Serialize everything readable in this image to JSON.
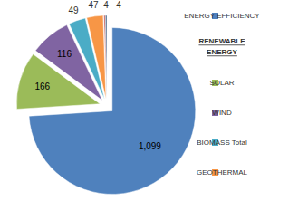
{
  "chart_data": {
    "type": "pie",
    "categories": [
      "ENERGY EFFICIENCY",
      "SOLAR",
      "WIND",
      "BIOMASS Total",
      "GEOTHERMAL",
      null,
      null
    ],
    "values": [
      1099,
      166,
      116,
      49,
      47,
      4,
      4
    ],
    "value_labels": [
      "1,099",
      "166",
      "116",
      "49",
      "47",
      "4",
      "4"
    ],
    "colors": [
      "#4f81bd",
      "#9bbb59",
      "#8064a2",
      "#4bacc6",
      "#f79646",
      "#c0504d",
      "#2c4d75"
    ],
    "data_labels": true,
    "legend": "right",
    "annotations": [
      "RENEWABLE ENERGY"
    ]
  }
}
